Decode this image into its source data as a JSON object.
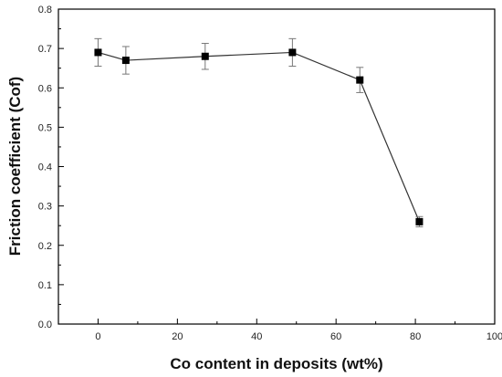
{
  "chart_data": {
    "type": "line",
    "title": "",
    "xlabel": "Co content in deposits (wt%)",
    "ylabel": "Friction coefficient (Cof)",
    "xlim": [
      -10,
      100
    ],
    "ylim": [
      0.0,
      0.8
    ],
    "x_ticks": [
      0,
      20,
      40,
      60,
      80,
      100
    ],
    "x_tick_labels": [
      "0",
      "20",
      "40",
      "60",
      "80",
      "100"
    ],
    "y_ticks": [
      0.0,
      0.1,
      0.2,
      0.3,
      0.4,
      0.5,
      0.6,
      0.7,
      0.8
    ],
    "y_tick_labels": [
      "0.0",
      "0.1",
      "0.2",
      "0.3",
      "0.4",
      "0.5",
      "0.6",
      "0.7",
      "0.8"
    ],
    "grid": false,
    "legend": "none",
    "marker": "square",
    "line_color": "#333333",
    "marker_color": "#000000",
    "series": [
      {
        "x": [
          0,
          7,
          27,
          49,
          66,
          81
        ],
        "y": [
          0.69,
          0.67,
          0.68,
          0.69,
          0.62,
          0.26
        ],
        "error": [
          0.035,
          0.035,
          0.033,
          0.035,
          0.032,
          0.013
        ]
      }
    ]
  }
}
